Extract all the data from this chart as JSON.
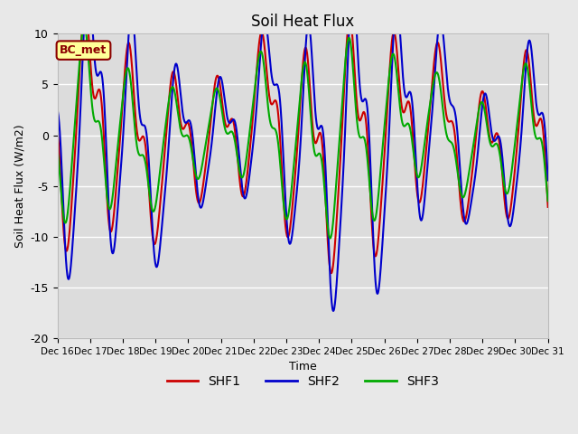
{
  "title": "Soil Heat Flux",
  "xlabel": "Time",
  "ylabel": "Soil Heat Flux (W/m2)",
  "ylim": [
    -20,
    10
  ],
  "background_color": "#e8e8e8",
  "plot_bg_color": "#dcdcdc",
  "annotation_text": "BC_met",
  "annotation_fg": "#8b0000",
  "annotation_bg": "#ffff99",
  "series": {
    "SHF1": {
      "color": "#cc0000",
      "linewidth": 1.5
    },
    "SHF2": {
      "color": "#0000cc",
      "linewidth": 1.5
    },
    "SHF3": {
      "color": "#00aa00",
      "linewidth": 1.5
    }
  },
  "xtick_labels": [
    "Dec 16",
    "Dec 17",
    "Dec 18",
    "Dec 19",
    "Dec 20",
    "Dec 21",
    "Dec 22",
    "Dec 23",
    "Dec 24",
    "Dec 25",
    "Dec 26",
    "Dec 27",
    "Dec 28",
    "Dec 29",
    "Dec 30",
    "Dec 31"
  ],
  "ytick_labels": [
    "-20",
    "-15",
    "-10",
    "-5",
    "0",
    "5",
    "10"
  ],
  "yticks": [
    -20,
    -15,
    -10,
    -5,
    0,
    5,
    10
  ],
  "n_points": 1500
}
